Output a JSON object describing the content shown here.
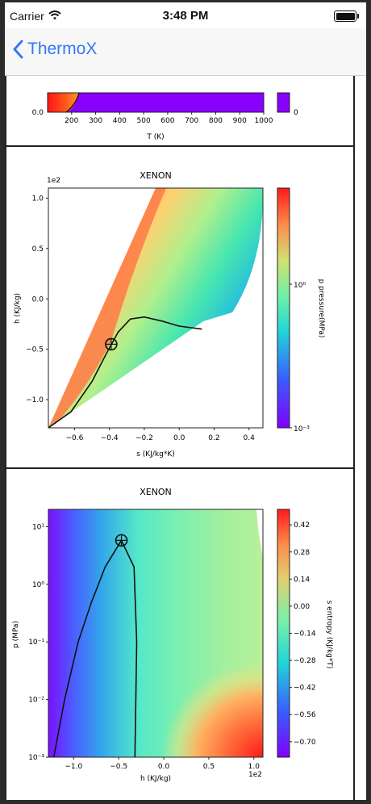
{
  "status_bar": {
    "carrier": "Carrier",
    "time": "3:48 PM"
  },
  "nav": {
    "back_label": "ThermoX"
  },
  "top_plot": {
    "y_tick": "0.0",
    "x_ticks": [
      "200",
      "300",
      "400",
      "500",
      "600",
      "700",
      "800",
      "900",
      "1000"
    ],
    "xlabel": "T (K)",
    "colorbar_tick": "0",
    "colors": {
      "fill": "#8a00ff",
      "hot": "#ff1f1f"
    }
  },
  "chart_data": [
    {
      "type": "heatmap",
      "title": "XENON",
      "xlabel": "s (KJ/kg*K)",
      "ylabel": "h (KJ/kg)",
      "y_offset_label": "1e2",
      "x_ticks": [
        "−0.6",
        "−0.4",
        "−0.2",
        "0.0",
        "0.2",
        "0.4"
      ],
      "y_ticks": [
        "1.0",
        "0.5",
        "0.0",
        "−0.5",
        "−1.0"
      ],
      "xlim": [
        -0.75,
        0.48
      ],
      "ylim": [
        -1.28,
        1.1
      ],
      "colorbar": {
        "label": "p pressure(MPa)",
        "ticks": [
          "10⁰",
          "10⁻³"
        ],
        "scale": "log"
      },
      "saturation_dome": {
        "x": [
          -0.75,
          -0.62,
          -0.5,
          -0.42,
          -0.35,
          -0.28,
          -0.2,
          -0.1,
          0.0,
          0.13
        ],
        "y": [
          -1.28,
          -1.12,
          -0.82,
          -0.55,
          -0.33,
          -0.2,
          -0.18,
          -0.22,
          -0.27,
          -0.3
        ]
      },
      "critical_point": {
        "x": -0.39,
        "y": -0.45
      }
    },
    {
      "type": "heatmap",
      "title": "XENON",
      "xlabel": "h (KJ/kg)",
      "ylabel": "p (MPa)",
      "x_offset_label": "1e2",
      "x_ticks": [
        "−1.0",
        "−0.5",
        "0.0",
        "0.5",
        "1.0"
      ],
      "y_ticks": [
        "10¹",
        "10⁰",
        "10⁻¹",
        "10⁻²",
        "10⁻³"
      ],
      "xlim": [
        -1.28,
        1.1
      ],
      "ylim": [
        0.001,
        20
      ],
      "y_scale": "log",
      "colorbar": {
        "label": "s entropy (KJ/kg*T)",
        "ticks": [
          "0.42",
          "0.28",
          "0.14",
          "0.00",
          "−0.14",
          "−0.28",
          "−0.42",
          "−0.56",
          "−0.70"
        ]
      },
      "saturation_dome": {
        "x": [
          -1.22,
          -1.1,
          -0.95,
          -0.8,
          -0.65,
          -0.47,
          -0.33,
          -0.3,
          -0.32
        ],
        "y": [
          0.001,
          0.01,
          0.1,
          0.5,
          2,
          5.8,
          2,
          0.1,
          0.001
        ]
      },
      "critical_point": {
        "x": -0.47,
        "y": 5.8
      }
    }
  ]
}
